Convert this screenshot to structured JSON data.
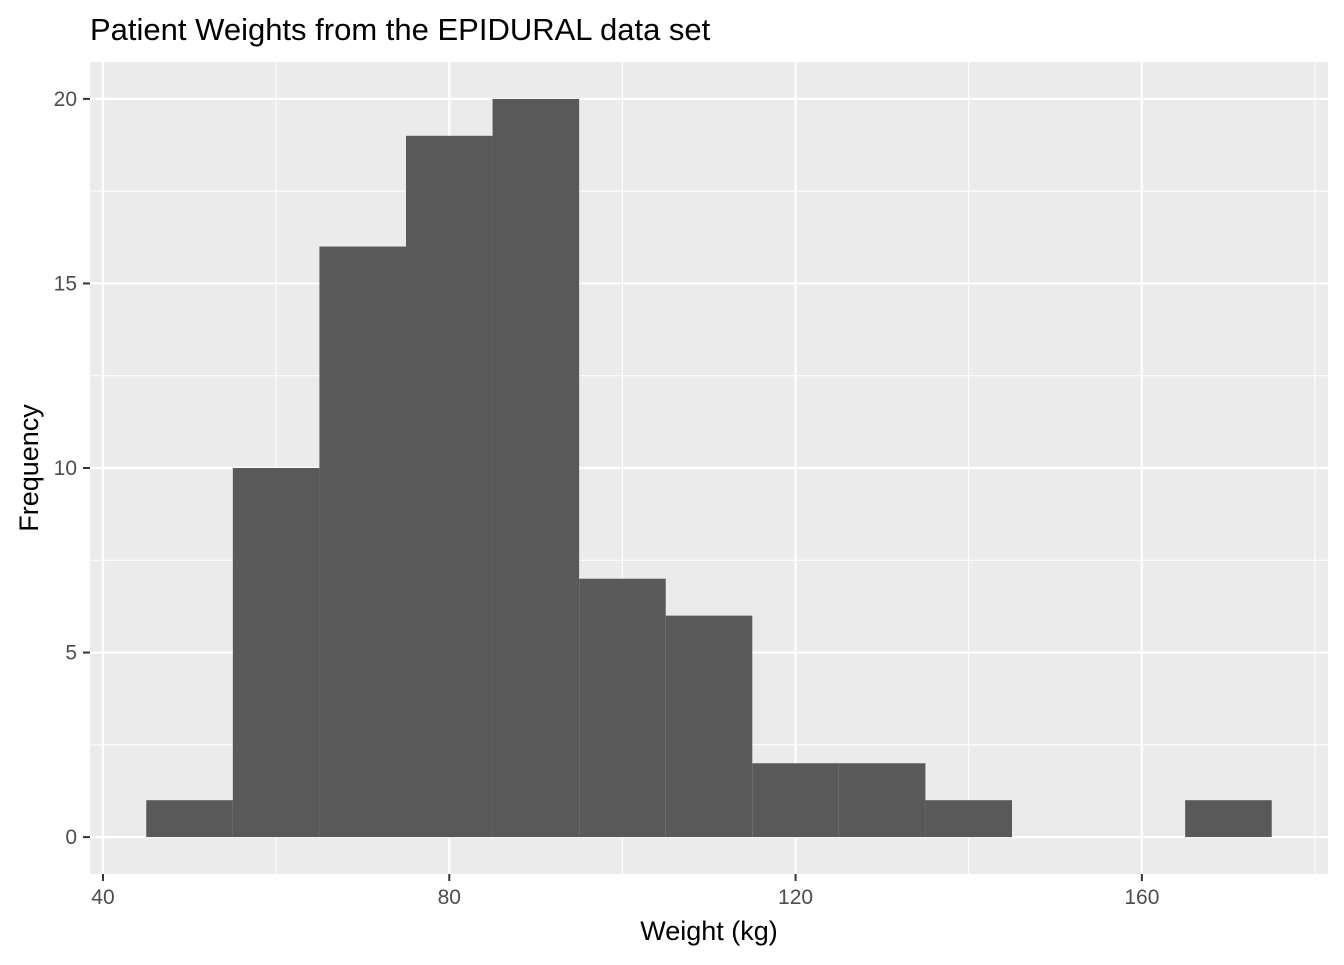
{
  "chart_data": {
    "type": "bar",
    "subtype": "histogram",
    "title": "Patient Weights from the EPIDURAL data set",
    "xlabel": "Weight (kg)",
    "ylabel": "Frequency",
    "bin_width": 10,
    "bins": [
      {
        "x_start": 45,
        "x_end": 55,
        "count": 1
      },
      {
        "x_start": 55,
        "x_end": 65,
        "count": 10
      },
      {
        "x_start": 65,
        "x_end": 75,
        "count": 16
      },
      {
        "x_start": 75,
        "x_end": 85,
        "count": 19
      },
      {
        "x_start": 85,
        "x_end": 95,
        "count": 20
      },
      {
        "x_start": 95,
        "x_end": 105,
        "count": 7
      },
      {
        "x_start": 105,
        "x_end": 115,
        "count": 6
      },
      {
        "x_start": 115,
        "x_end": 125,
        "count": 2
      },
      {
        "x_start": 125,
        "x_end": 135,
        "count": 2
      },
      {
        "x_start": 135,
        "x_end": 145,
        "count": 1
      },
      {
        "x_start": 145,
        "x_end": 155,
        "count": 0
      },
      {
        "x_start": 155,
        "x_end": 165,
        "count": 0
      },
      {
        "x_start": 165,
        "x_end": 175,
        "count": 1
      }
    ],
    "xlim": [
      38.5,
      181.5
    ],
    "ylim": [
      -1,
      21
    ],
    "x_major_ticks": [
      40,
      80,
      120,
      160
    ],
    "x_minor_ticks": [
      60,
      100,
      140,
      180
    ],
    "y_major_ticks": [
      0,
      5,
      10,
      15,
      20
    ],
    "y_minor_ticks": [
      2.5,
      7.5,
      12.5,
      17.5
    ],
    "grid": true,
    "legend": "none",
    "colors": {
      "panel_background": "#EBEBEB",
      "grid_major": "#FFFFFF",
      "bar_fill": "#595959",
      "tick_label": "#4D4D4D",
      "tick_mark": "#333333"
    }
  }
}
